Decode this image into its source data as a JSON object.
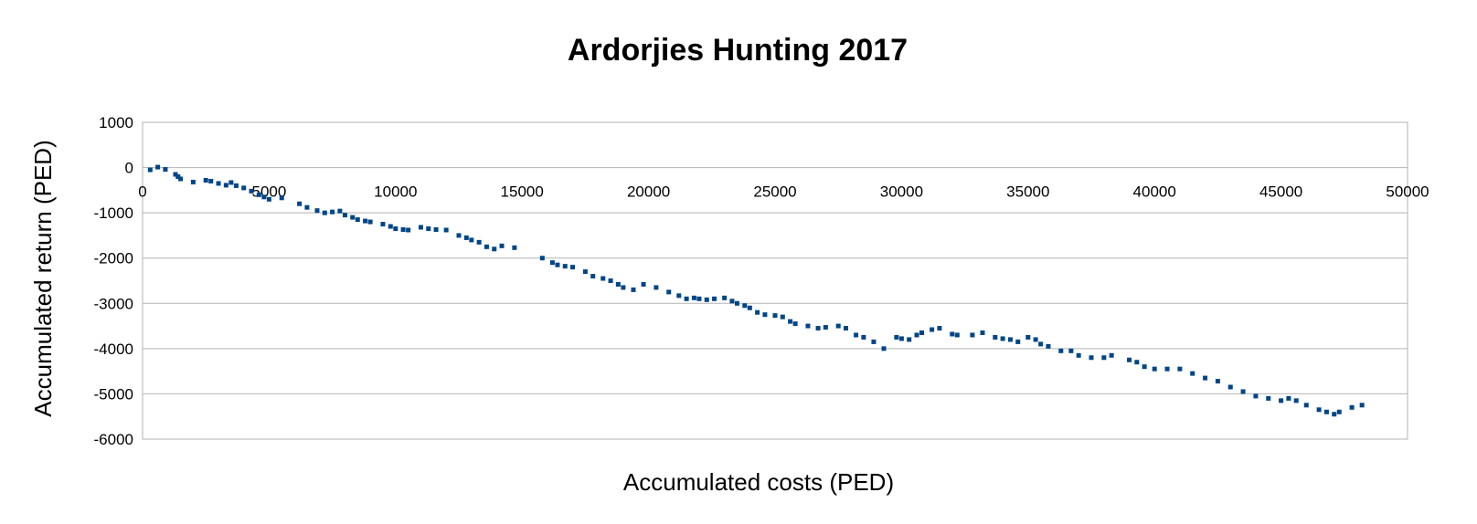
{
  "chart_data": {
    "type": "scatter",
    "title": "Ardorjies Hunting 2017",
    "xlabel": "Accumulated costs (PED)",
    "ylabel": "Accumulated return (PED)",
    "xlim": [
      0,
      50000
    ],
    "ylim": [
      -6000,
      1000
    ],
    "x_ticks": [
      0,
      5000,
      10000,
      15000,
      20000,
      25000,
      30000,
      35000,
      40000,
      45000,
      50000
    ],
    "y_ticks": [
      1000,
      0,
      -1000,
      -2000,
      -3000,
      -4000,
      -5000,
      -6000
    ],
    "grid": "horizontal",
    "legend": "none",
    "marker_color": "#004586",
    "series": [
      {
        "x": [
          300,
          600,
          900,
          1300,
          1400,
          1500,
          2000,
          2500,
          2700,
          3000,
          3300,
          3500,
          3700,
          4000,
          4300,
          4600,
          4800,
          5000,
          5500,
          6200,
          6500,
          6900,
          7200,
          7500,
          7800,
          8000,
          8300,
          8500,
          8800,
          9000,
          9500,
          9800,
          10000,
          10300,
          10500,
          11000,
          11300,
          11600,
          12000,
          12500,
          12800,
          13000,
          13300,
          13600,
          13900,
          14200,
          14700,
          15800,
          16200,
          16400,
          16700,
          17000,
          17500,
          17800,
          18200,
          18500,
          18800,
          19000,
          19400,
          19800,
          20300,
          20800,
          21200,
          21500,
          21800,
          22000,
          22300,
          22600,
          23000,
          23300,
          23500,
          23800,
          24000,
          24300,
          24600,
          25000,
          25300,
          25600,
          25800,
          26300,
          26700,
          27000,
          27500,
          27800,
          28200,
          28500,
          28900,
          29300,
          29800,
          30000,
          30300,
          30600,
          30800,
          31200,
          31500,
          32000,
          32200,
          32800,
          33200,
          33700,
          34000,
          34300,
          34600,
          35000,
          35300,
          35500,
          35800,
          36300,
          36700,
          37000,
          37500,
          38000,
          38300,
          39000,
          39300,
          39600,
          40000,
          40500,
          41000,
          41500,
          42000,
          42500,
          43000,
          43500,
          44000,
          44500,
          45000,
          45300,
          45600,
          46000,
          46500,
          46800,
          47100,
          47300,
          47800,
          48200
        ],
        "y": [
          -50,
          10,
          -40,
          -150,
          -200,
          -250,
          -320,
          -280,
          -300,
          -350,
          -390,
          -330,
          -400,
          -450,
          -520,
          -600,
          -650,
          -700,
          -670,
          -800,
          -880,
          -950,
          -1000,
          -980,
          -960,
          -1050,
          -1100,
          -1150,
          -1180,
          -1200,
          -1250,
          -1300,
          -1350,
          -1370,
          -1380,
          -1320,
          -1350,
          -1370,
          -1380,
          -1500,
          -1550,
          -1600,
          -1650,
          -1750,
          -1800,
          -1730,
          -1770,
          -2000,
          -2100,
          -2150,
          -2180,
          -2200,
          -2300,
          -2400,
          -2450,
          -2500,
          -2580,
          -2650,
          -2700,
          -2580,
          -2650,
          -2750,
          -2830,
          -2900,
          -2880,
          -2900,
          -2920,
          -2900,
          -2880,
          -2950,
          -3000,
          -3050,
          -3100,
          -3200,
          -3250,
          -3270,
          -3300,
          -3400,
          -3450,
          -3500,
          -3550,
          -3530,
          -3500,
          -3550,
          -3700,
          -3750,
          -3850,
          -4000,
          -3750,
          -3780,
          -3800,
          -3700,
          -3650,
          -3580,
          -3550,
          -3680,
          -3700,
          -3700,
          -3650,
          -3750,
          -3780,
          -3800,
          -3850,
          -3750,
          -3800,
          -3900,
          -3950,
          -4050,
          -4050,
          -4150,
          -4200,
          -4200,
          -4150,
          -4250,
          -4300,
          -4400,
          -4450,
          -4450,
          -4450,
          -4550,
          -4650,
          -4720,
          -4850,
          -4950,
          -5050,
          -5100,
          -5150,
          -5100,
          -5150,
          -5250,
          -5350,
          -5400,
          -5450,
          -5400,
          -5300,
          -5250
        ]
      }
    ]
  }
}
